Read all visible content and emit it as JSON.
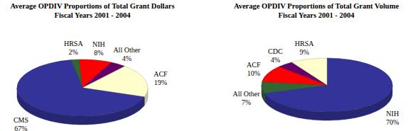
{
  "chart_data": [
    {
      "type": "pie",
      "title": "Average OPDIV Proportions of Total Grant Dollars",
      "subtitle": "Fiscal Years 2001 - 2004",
      "categories": [
        "HRSA",
        "NIH",
        "All Other",
        "ACF",
        "CMS"
      ],
      "values": [
        2,
        8,
        4,
        19,
        67
      ],
      "value_labels": [
        "2%",
        "8%",
        "4%",
        "19%",
        "67%"
      ],
      "colors": [
        "#336633",
        "#ff0000",
        "#660066",
        "#ffffcc",
        "#333399"
      ],
      "data_labels": true
    },
    {
      "type": "pie",
      "title": "Average OPDIV Proportions of Total Grant Volume",
      "subtitle": "Fiscal Years 2001 - 2004",
      "categories": [
        "NIH",
        "All Other",
        "ACF",
        "CDC",
        "HRSA"
      ],
      "values": [
        70,
        7,
        10,
        4,
        9
      ],
      "value_labels": [
        "70%",
        "7%",
        "10%",
        "4%",
        "9%"
      ],
      "colors": [
        "#333399",
        "#336633",
        "#ff0000",
        "#660066",
        "#ffffcc"
      ],
      "data_labels": true
    }
  ]
}
